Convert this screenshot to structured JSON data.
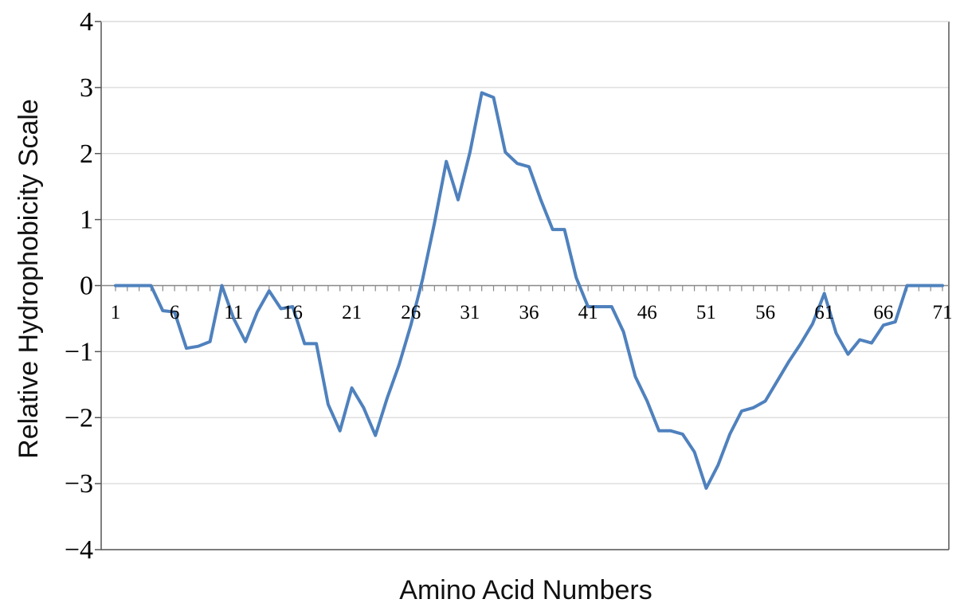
{
  "chart_data": {
    "type": "line",
    "title": "",
    "xlabel": "Amino Acid Numbers",
    "ylabel": "Relative Hydrophobicity Scale",
    "ylim": [
      -4,
      4
    ],
    "yticks": [
      "4",
      "3",
      "2",
      "1",
      "0",
      "−1",
      "−2",
      "−3",
      "−4"
    ],
    "ytick_values": [
      4,
      3,
      2,
      1,
      0,
      -1,
      -2,
      -3,
      -4
    ],
    "xticks": [
      "1",
      "6",
      "11",
      "16",
      "21",
      "26",
      "31",
      "36",
      "41",
      "46",
      "51",
      "56",
      "61",
      "66",
      "71"
    ],
    "xtick_values": [
      1,
      6,
      11,
      16,
      21,
      26,
      31,
      36,
      41,
      46,
      51,
      56,
      61,
      66,
      71
    ],
    "xlim": [
      1,
      71
    ],
    "grid": true,
    "line_color": "#4f81bd",
    "series": [
      {
        "x": [
          1,
          2,
          3,
          4,
          5,
          6,
          7,
          8,
          9,
          10,
          11,
          12,
          13,
          14,
          15,
          16,
          17,
          18,
          19,
          20,
          21,
          22,
          23,
          24,
          25,
          26,
          27,
          28,
          29,
          30,
          31,
          32,
          33,
          34,
          35,
          36,
          37,
          38,
          39,
          40,
          41,
          42,
          43,
          44,
          45,
          46,
          47,
          48,
          49,
          50,
          51,
          52,
          53,
          54,
          55,
          56,
          57,
          58,
          59,
          60,
          61,
          62,
          63,
          64,
          65,
          66,
          67,
          68,
          69,
          70,
          71
        ],
        "values": [
          0,
          0,
          0,
          0,
          -0.38,
          -0.4,
          -0.95,
          -0.92,
          -0.85,
          0,
          -0.5,
          -0.85,
          -0.4,
          -0.08,
          -0.35,
          -0.32,
          -0.88,
          -0.88,
          -1.8,
          -2.2,
          -1.55,
          -1.85,
          -2.27,
          -1.7,
          -1.2,
          -0.6,
          0.1,
          0.95,
          1.88,
          1.3,
          2.02,
          2.92,
          2.85,
          2.02,
          1.85,
          1.8,
          1.3,
          0.85,
          0.85,
          0.12,
          -0.32,
          -0.32,
          -0.32,
          -0.7,
          -1.38,
          -1.75,
          -2.2,
          -2.2,
          -2.25,
          -2.52,
          -3.07,
          -2.72,
          -2.25,
          -1.9,
          -1.85,
          -1.75,
          -1.45,
          -1.15,
          -0.88,
          -0.58,
          -0.12,
          -0.72,
          -1.04,
          -0.82,
          -0.87,
          -0.6,
          -0.55,
          0,
          0,
          0,
          0
        ]
      }
    ]
  }
}
